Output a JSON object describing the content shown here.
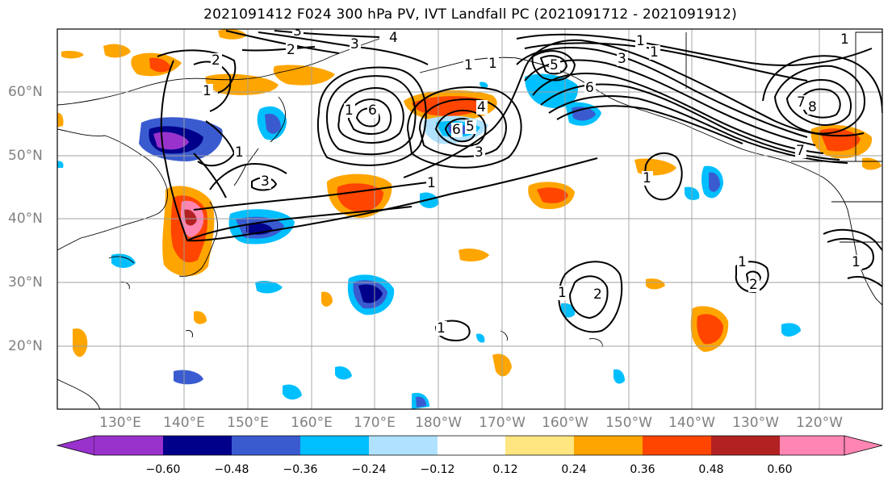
{
  "title": "2021091412 F024 300 hPa PV, IVT Landfall PC (2021091712 - 2021091912)",
  "lat_labels": [
    "60°N",
    "50°N",
    "40°N",
    "30°N",
    "20°N"
  ],
  "lon_labels": [
    "130°E",
    "140°E",
    "150°E",
    "160°E",
    "170°E",
    "180°W",
    "170°W",
    "160°W",
    "150°W",
    "140°W",
    "130°W",
    "120°W"
  ],
  "colorbar": {
    "ticks": [
      "−0.60",
      "−0.48",
      "−0.36",
      "−0.24",
      "−0.12",
      "0.12",
      "0.24",
      "0.36",
      "0.48",
      "0.60"
    ],
    "colors": [
      "#9932cc",
      "#00008b",
      "#3a5bd0",
      "#00bfff",
      "#b0e2ff",
      "#ffffff",
      "#ffe680",
      "#ffa500",
      "#ff4500",
      "#b22222",
      "#ff85b3"
    ]
  },
  "contour_labels": [
    "3",
    "4",
    "3",
    "2",
    "2",
    "1",
    "6",
    "4",
    "6",
    "5",
    "3",
    "1",
    "3",
    "1",
    "1",
    "1",
    "3",
    "5",
    "6",
    "7",
    "8",
    "7",
    "1",
    "1",
    "1",
    "2",
    "1",
    "2",
    "1",
    "1",
    "1",
    "1",
    "1"
  ]
}
